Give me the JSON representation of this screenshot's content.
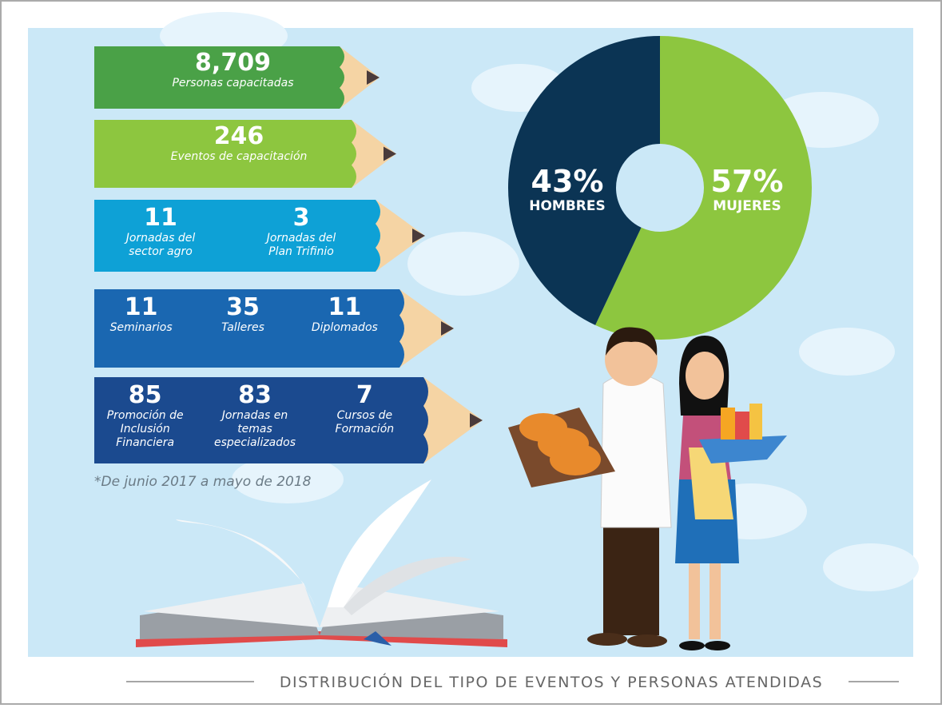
{
  "pencils": [
    {
      "items": [
        {
          "number": "8,709",
          "label": "Personas capacitadas"
        }
      ]
    },
    {
      "items": [
        {
          "number": "246",
          "label": "Eventos de capacitación"
        }
      ]
    },
    {
      "items": [
        {
          "number": "11",
          "label": "Jornadas del sector agro"
        },
        {
          "number": "3",
          "label": "Jornadas del Plan Trifinio"
        }
      ]
    },
    {
      "items": [
        {
          "number": "11",
          "label": "Seminarios"
        },
        {
          "number": "35",
          "label": "Talleres"
        },
        {
          "number": "11",
          "label": "Diplomados"
        }
      ]
    },
    {
      "items": [
        {
          "number": "85",
          "label": "Promoción de Inclusión Financiera"
        },
        {
          "number": "83",
          "label": "Jornadas en temas especializados"
        },
        {
          "number": "7",
          "label": "Cursos de Formación"
        }
      ]
    }
  ],
  "note": "*De junio 2017 a mayo de 2018",
  "caption": "DISTRIBUCIÓN DEL TIPO DE EVENTOS Y PERSONAS ATENDIDAS",
  "chart_data": {
    "type": "donut",
    "categories": [
      "HOMBRES",
      "MUJERES"
    ],
    "values": [
      43,
      57
    ],
    "value_labels": [
      "43%",
      "57%"
    ],
    "colors": [
      "#0b3454",
      "#8dc63f"
    ]
  }
}
